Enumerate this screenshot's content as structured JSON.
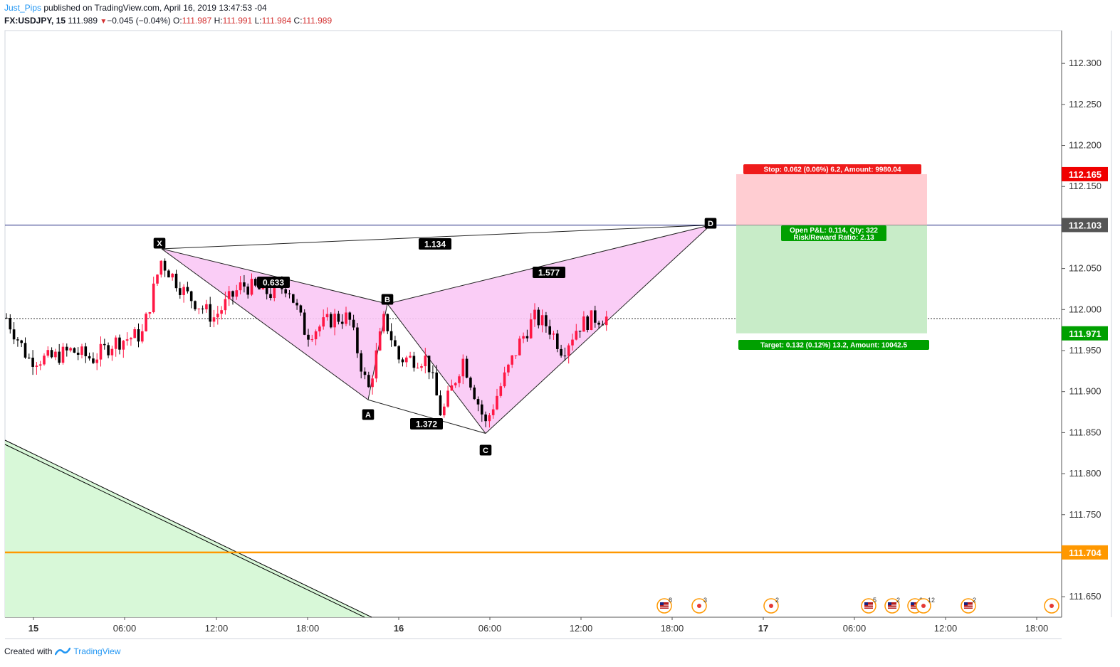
{
  "header": {
    "author": "Just_Pips",
    "published_text": "published on TradingView.com, April 16, 2019 13:47:53 -04",
    "symbol": "FX:USDJPY, 15",
    "last": "111.989",
    "change_arrow": "▼",
    "change": "−0.045 (−0.04%)",
    "o_label": "O:",
    "o_value": "111.987",
    "h_label": "H:",
    "h_value": "111.991",
    "l_label": "L:",
    "l_value": "111.984",
    "c_label": "C:",
    "c_value": "111.989"
  },
  "footer": {
    "created_with": "Created with",
    "brand": "TradingView"
  },
  "colors": {
    "up": "#ff1744",
    "down": "#000000",
    "pattern_fill": "#f9c8f5",
    "stop_zone": "#ffcdd2",
    "target_zone": "#c8ecc8",
    "support": "#ff9800",
    "trend_fill": "#d8f8d8",
    "accent": "#2196f3"
  },
  "chart_data": {
    "type": "candlestick",
    "ylim": [
      111.625,
      112.34
    ],
    "y_ticks": [
      "112.300",
      "112.250",
      "112.200",
      "112.150",
      "112.100",
      "112.050",
      "112.000",
      "111.950",
      "111.900",
      "111.850",
      "111.800",
      "111.750",
      "111.700",
      "111.650"
    ],
    "x_ticks": [
      "15",
      "06:00",
      "12:00",
      "18:00",
      "16",
      "06:00",
      "12:00",
      "18:00",
      "17",
      "06:00",
      "12:00",
      "18:00"
    ],
    "pattern_points": [
      {
        "label": "X",
        "price": 112.074
      },
      {
        "label": "A",
        "price": 111.89
      },
      {
        "label": "B",
        "price": 112.007
      },
      {
        "label": "C",
        "price": 111.849
      },
      {
        "label": "D",
        "price": 112.103
      }
    ],
    "ratios": [
      "1.134",
      "0.633",
      "1.577",
      "1.372"
    ],
    "position": {
      "stop_label": "Stop: 0.062 (0.06%) 6.2, Amount: 9980.04",
      "entry_label_1": "Open P&L: 0.114, Qty: 322",
      "entry_label_2": "Risk/Reward Ratio: 2.13",
      "target_label": "Target: 0.132 (0.12%) 13.2, Amount: 10042.5",
      "stop_price": 112.165,
      "entry_price": 112.103,
      "target_price": 111.971
    },
    "price_tags": [
      {
        "text": "112.165",
        "price": 112.165,
        "color": "#f00000"
      },
      {
        "text": "112.103",
        "price": 112.103,
        "color": "#555555"
      },
      {
        "text": "111.971",
        "price": 111.971,
        "color": "#00a000"
      },
      {
        "text": "111.704",
        "price": 111.704,
        "color": "#ff9800"
      }
    ],
    "support_price": 111.704,
    "last_price": 111.989,
    "events": [
      {
        "kind": "flag",
        "count": "8"
      },
      {
        "kind": "dot",
        "count": "3"
      },
      {
        "kind": "dot",
        "count": "2"
      },
      {
        "kind": "flag",
        "count": "5"
      },
      {
        "kind": "flag",
        "count": "2"
      },
      {
        "kind": "flag",
        "count": "2"
      },
      {
        "kind": "dot",
        "count": "12"
      },
      {
        "kind": "flag",
        "count": "2"
      },
      {
        "kind": "dot",
        "count": ""
      }
    ]
  }
}
